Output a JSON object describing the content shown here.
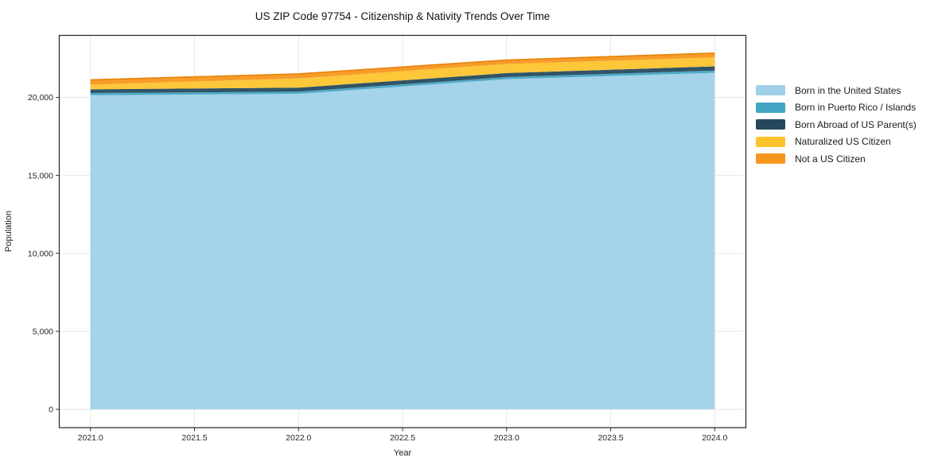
{
  "title": "US ZIP Code 97754 - Citizenship & Nativity Trends Over Time",
  "chart_data": {
    "type": "area",
    "stacked": true,
    "title": "US ZIP Code 97754 - Citizenship & Nativity Trends Over Time",
    "xlabel": "Year",
    "ylabel": "Population",
    "x": [
      2021,
      2022,
      2023,
      2024
    ],
    "series": [
      {
        "name": "Born in the United States",
        "color": "#9fd0e8",
        "values": [
          20140,
          20230,
          21165,
          21575
        ]
      },
      {
        "name": "Born in Puerto Rico / Islands",
        "color": "#42a5c4",
        "values": [
          140,
          135,
          140,
          140
        ]
      },
      {
        "name": "Born Abroad of US Parent(s)",
        "color": "#24495c",
        "values": [
          235,
          255,
          255,
          270
        ]
      },
      {
        "name": "Naturalized US Citizen",
        "color": "#fcc32d",
        "values": [
          305,
          600,
          580,
          580
        ]
      },
      {
        "name": "Not a US Citizen",
        "color": "#f6961d",
        "values": [
          305,
          290,
          255,
          275
        ],
        "edge_color": "#e8820a"
      }
    ],
    "totals": [
      21125,
      21510,
      22395,
      22840
    ],
    "xlim": [
      2020.85,
      2024.15
    ],
    "ylim": [
      -1175,
      23975
    ],
    "xticks": {
      "values": [
        2021,
        2021.5,
        2022,
        2022.5,
        2023,
        2023.5,
        2024
      ],
      "labels": [
        "2021.0",
        "2021.5",
        "2022.0",
        "2022.5",
        "2023.0",
        "2023.5",
        "2024.0"
      ]
    },
    "yticks": {
      "values": [
        0,
        5000,
        10000,
        15000,
        20000
      ],
      "labels": [
        "0",
        "5,000",
        "10,000",
        "15,000",
        "20,000"
      ]
    },
    "grid": true,
    "legend_position": "right-outside"
  },
  "colors": {
    "background": "#ffffff",
    "grid": "#e7e7e7",
    "spine": "#222222",
    "tick": "#333333",
    "text": "#1a1a1a"
  }
}
